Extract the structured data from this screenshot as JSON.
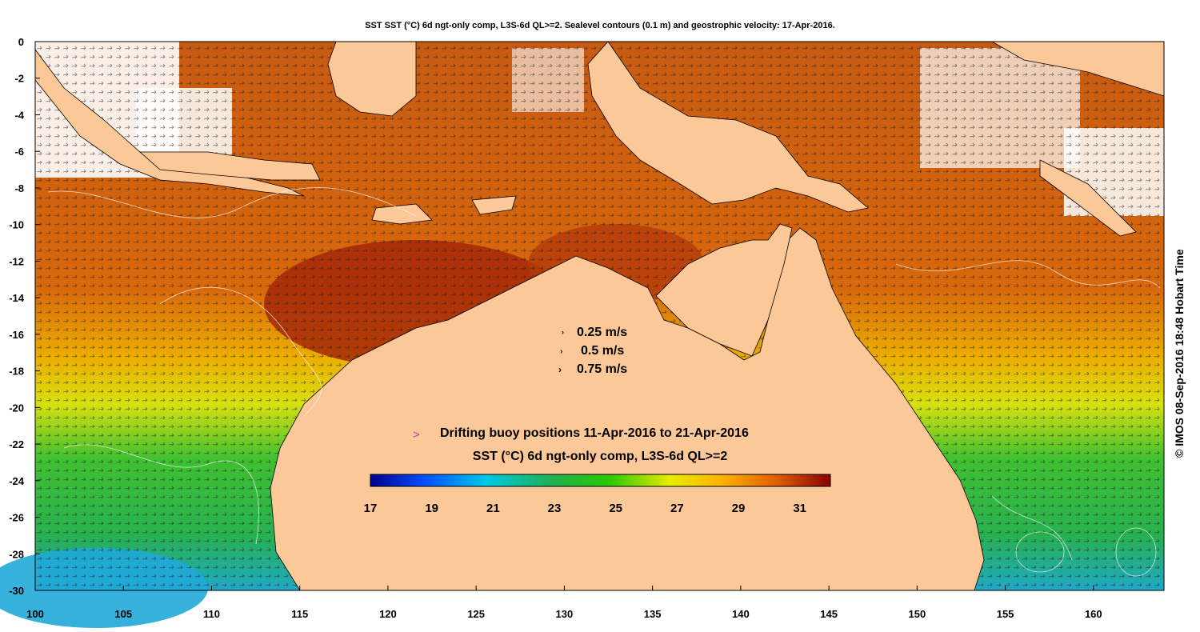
{
  "title": "SST SST (°C) 6d ngt-only comp, L3S-6d QL>=2. Sealevel contours (0.1 m) and geostrophic velocity: 17-Apr-2016.",
  "credit": "© IMOS 08-Sep-2016 18:48 Hobart Time",
  "axes": {
    "x_ticks": [
      "100",
      "105",
      "110",
      "115",
      "120",
      "125",
      "130",
      "135",
      "140",
      "145",
      "150",
      "155",
      "160"
    ],
    "y_ticks": [
      "0",
      "-2",
      "-4",
      "-6",
      "-8",
      "-10",
      "-12",
      "-14",
      "-16",
      "-18",
      "-20",
      "-22",
      "-24",
      "-26",
      "-28",
      "-30"
    ],
    "lon_range": [
      100,
      164
    ],
    "lat_range": [
      -30,
      0
    ]
  },
  "velocity_legend": [
    "0.25 m/s",
    "0.5 m/s",
    "0.75 m/s"
  ],
  "buoy_legend": {
    "symbol": ">",
    "text": "Drifting buoy positions 11-Apr-2016 to 21-Apr-2016",
    "color": "#cc33cc"
  },
  "colorbar": {
    "title": "SST (°C) 6d ngt-only comp, L3S-6d QL>=2",
    "labels": [
      "17",
      "19",
      "21",
      "23",
      "25",
      "27",
      "29",
      "31"
    ],
    "range": [
      17,
      32
    ],
    "colors": [
      "#00008f",
      "#0050ff",
      "#00c8e6",
      "#22b04a",
      "#2cc800",
      "#e6ec00",
      "#ffb400",
      "#e06000",
      "#8b0000"
    ]
  },
  "colors": {
    "land": "#fcc898",
    "warm_water": "#c84a0a",
    "hot_water": "#a02000",
    "orange_water": "#e07010",
    "yellow_water": "#dcdc10",
    "green_water": "#30b030",
    "cyan_water": "#10b0d0",
    "cloud": "#ffffff"
  }
}
